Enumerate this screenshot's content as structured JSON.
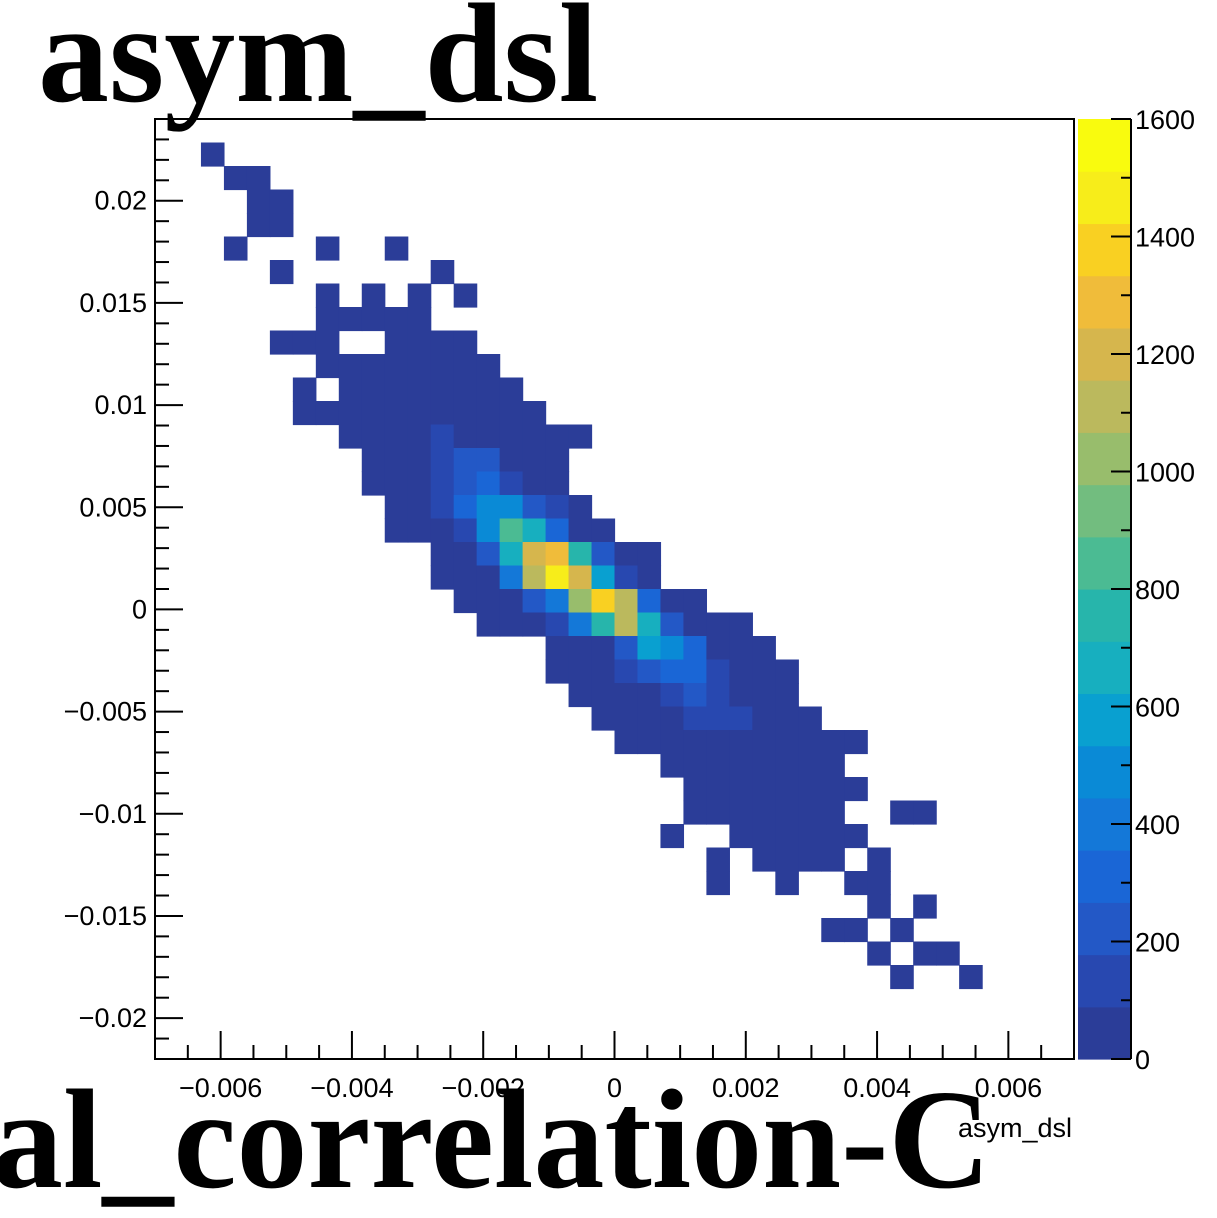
{
  "page": {
    "title": "asym_dsl",
    "bottom_text": "al_correlation-C"
  },
  "chart_data": {
    "type": "heatmap",
    "title": "asym_dsl",
    "xlabel": "asym_dsl",
    "ylabel": "",
    "x_range": [
      -0.007,
      0.007
    ],
    "y_range": [
      -0.022,
      0.024
    ],
    "x_bins": 40,
    "y_bins": 40,
    "x_ticks": [
      {
        "v": -0.006,
        "label": "−0.006"
      },
      {
        "v": -0.004,
        "label": "−0.004"
      },
      {
        "v": -0.002,
        "label": "−0.002"
      },
      {
        "v": 0,
        "label": "0"
      },
      {
        "v": 0.002,
        "label": "0.002"
      },
      {
        "v": 0.004,
        "label": "0.004"
      },
      {
        "v": 0.006,
        "label": "0.006"
      }
    ],
    "y_ticks": [
      {
        "v": 0.02,
        "label": "0.02"
      },
      {
        "v": 0.015,
        "label": "0.015"
      },
      {
        "v": 0.01,
        "label": "0.01"
      },
      {
        "v": 0.005,
        "label": "0.005"
      },
      {
        "v": 0,
        "label": "0"
      },
      {
        "v": -0.005,
        "label": "−0.005"
      },
      {
        "v": -0.01,
        "label": "−0.01"
      },
      {
        "v": -0.015,
        "label": "−0.015"
      },
      {
        "v": -0.02,
        "label": "−0.02"
      }
    ],
    "z_range": [
      0,
      1600
    ],
    "z_ticks": [
      {
        "v": 0,
        "label": "0"
      },
      {
        "v": 200,
        "label": "200"
      },
      {
        "v": 400,
        "label": "400"
      },
      {
        "v": 600,
        "label": "600"
      },
      {
        "v": 800,
        "label": "800"
      },
      {
        "v": 1000,
        "label": "1000"
      },
      {
        "v": 1200,
        "label": "1200"
      },
      {
        "v": 1400,
        "label": "1400"
      },
      {
        "v": 1600,
        "label": "1600"
      }
    ],
    "palette": [
      "#2b3d98",
      "#2848b0",
      "#2358c6",
      "#1a66d6",
      "#1478d8",
      "#0a8ad6",
      "#09a0d0",
      "#17afbf",
      "#27b5ab",
      "#4bbb93",
      "#72bd7f",
      "#98bd6c",
      "#bbb95d",
      "#d6b64d",
      "#f0bc3a",
      "#f9d022",
      "#f7ed1a",
      "#f9fb0e"
    ],
    "cells": [
      [
        2,
        38,
        1
      ],
      [
        3,
        37,
        1
      ],
      [
        4,
        37,
        1
      ],
      [
        4,
        36,
        1
      ],
      [
        5,
        36,
        1
      ],
      [
        4,
        35,
        1
      ],
      [
        5,
        35,
        1
      ],
      [
        3,
        34,
        1
      ],
      [
        7,
        34,
        1
      ],
      [
        10,
        34,
        1
      ],
      [
        5,
        33,
        1
      ],
      [
        12,
        33,
        1
      ],
      [
        7,
        32,
        1
      ],
      [
        9,
        32,
        1
      ],
      [
        11,
        32,
        1
      ],
      [
        13,
        32,
        1
      ],
      [
        7,
        31,
        1
      ],
      [
        8,
        31,
        1
      ],
      [
        9,
        31,
        1
      ],
      [
        10,
        31,
        1
      ],
      [
        11,
        31,
        1
      ],
      [
        5,
        30,
        1
      ],
      [
        6,
        30,
        1
      ],
      [
        7,
        30,
        1
      ],
      [
        10,
        30,
        1
      ],
      [
        11,
        30,
        1
      ],
      [
        12,
        30,
        1
      ],
      [
        13,
        30,
        1
      ],
      [
        7,
        29,
        1
      ],
      [
        8,
        29,
        1
      ],
      [
        9,
        29,
        1
      ],
      [
        10,
        29,
        1
      ],
      [
        11,
        29,
        1
      ],
      [
        12,
        29,
        1
      ],
      [
        13,
        29,
        1
      ],
      [
        14,
        29,
        1
      ],
      [
        6,
        28,
        1
      ],
      [
        8,
        28,
        1
      ],
      [
        9,
        28,
        1
      ],
      [
        10,
        28,
        1
      ],
      [
        11,
        28,
        1
      ],
      [
        12,
        28,
        1
      ],
      [
        13,
        28,
        1
      ],
      [
        14,
        28,
        1
      ],
      [
        15,
        28,
        1
      ],
      [
        6,
        27,
        1
      ],
      [
        7,
        27,
        1
      ],
      [
        8,
        27,
        1
      ],
      [
        9,
        27,
        1
      ],
      [
        10,
        27,
        1
      ],
      [
        11,
        27,
        1
      ],
      [
        12,
        27,
        1
      ],
      [
        13,
        27,
        1
      ],
      [
        14,
        27,
        1
      ],
      [
        15,
        27,
        1
      ],
      [
        16,
        27,
        1
      ],
      [
        8,
        26,
        1
      ],
      [
        9,
        26,
        1
      ],
      [
        10,
        26,
        1
      ],
      [
        11,
        26,
        1
      ],
      [
        12,
        26,
        2
      ],
      [
        13,
        26,
        1
      ],
      [
        14,
        26,
        1
      ],
      [
        15,
        26,
        1
      ],
      [
        16,
        26,
        1
      ],
      [
        17,
        26,
        1
      ],
      [
        18,
        26,
        1
      ],
      [
        9,
        25,
        1
      ],
      [
        10,
        25,
        1
      ],
      [
        11,
        25,
        1
      ],
      [
        12,
        25,
        2
      ],
      [
        13,
        25,
        3
      ],
      [
        14,
        25,
        3
      ],
      [
        15,
        25,
        1
      ],
      [
        16,
        25,
        1
      ],
      [
        17,
        25,
        1
      ],
      [
        9,
        24,
        1
      ],
      [
        10,
        24,
        1
      ],
      [
        11,
        24,
        1
      ],
      [
        12,
        24,
        2
      ],
      [
        13,
        24,
        3
      ],
      [
        14,
        24,
        4
      ],
      [
        15,
        24,
        2
      ],
      [
        16,
        24,
        1
      ],
      [
        17,
        24,
        1
      ],
      [
        10,
        23,
        1
      ],
      [
        11,
        23,
        1
      ],
      [
        12,
        23,
        2
      ],
      [
        13,
        23,
        4
      ],
      [
        14,
        23,
        6
      ],
      [
        15,
        23,
        6
      ],
      [
        16,
        23,
        3
      ],
      [
        17,
        23,
        2
      ],
      [
        18,
        23,
        1
      ],
      [
        10,
        22,
        1
      ],
      [
        11,
        22,
        1
      ],
      [
        12,
        22,
        1
      ],
      [
        13,
        22,
        2
      ],
      [
        14,
        22,
        6
      ],
      [
        15,
        22,
        10
      ],
      [
        16,
        22,
        8
      ],
      [
        17,
        22,
        4
      ],
      [
        18,
        22,
        1
      ],
      [
        19,
        22,
        1
      ],
      [
        12,
        21,
        1
      ],
      [
        13,
        21,
        1
      ],
      [
        14,
        21,
        3
      ],
      [
        15,
        21,
        8
      ],
      [
        16,
        21,
        14
      ],
      [
        17,
        21,
        15
      ],
      [
        18,
        21,
        9
      ],
      [
        19,
        21,
        3
      ],
      [
        20,
        21,
        1
      ],
      [
        21,
        21,
        1
      ],
      [
        12,
        20,
        1
      ],
      [
        13,
        20,
        1
      ],
      [
        14,
        20,
        1
      ],
      [
        15,
        20,
        5
      ],
      [
        16,
        20,
        13
      ],
      [
        17,
        20,
        17
      ],
      [
        18,
        20,
        14
      ],
      [
        19,
        20,
        7
      ],
      [
        20,
        20,
        2
      ],
      [
        21,
        20,
        1
      ],
      [
        13,
        19,
        1
      ],
      [
        14,
        19,
        1
      ],
      [
        15,
        19,
        1
      ],
      [
        16,
        19,
        3
      ],
      [
        17,
        19,
        5
      ],
      [
        18,
        19,
        12
      ],
      [
        19,
        19,
        16
      ],
      [
        20,
        19,
        13
      ],
      [
        21,
        19,
        4
      ],
      [
        22,
        19,
        1
      ],
      [
        23,
        19,
        1
      ],
      [
        14,
        18,
        1
      ],
      [
        15,
        18,
        1
      ],
      [
        16,
        18,
        1
      ],
      [
        17,
        18,
        2
      ],
      [
        18,
        18,
        5
      ],
      [
        19,
        18,
        9
      ],
      [
        20,
        18,
        13
      ],
      [
        21,
        18,
        8
      ],
      [
        22,
        18,
        3
      ],
      [
        23,
        18,
        1
      ],
      [
        24,
        18,
        1
      ],
      [
        25,
        18,
        1
      ],
      [
        17,
        17,
        1
      ],
      [
        18,
        17,
        1
      ],
      [
        19,
        17,
        1
      ],
      [
        20,
        17,
        3
      ],
      [
        21,
        17,
        7
      ],
      [
        22,
        17,
        6
      ],
      [
        23,
        17,
        4
      ],
      [
        24,
        17,
        1
      ],
      [
        25,
        17,
        1
      ],
      [
        26,
        17,
        1
      ],
      [
        17,
        16,
        1
      ],
      [
        18,
        16,
        1
      ],
      [
        19,
        16,
        1
      ],
      [
        20,
        16,
        2
      ],
      [
        21,
        16,
        3
      ],
      [
        22,
        16,
        4
      ],
      [
        23,
        16,
        4
      ],
      [
        24,
        16,
        2
      ],
      [
        25,
        16,
        1
      ],
      [
        26,
        16,
        1
      ],
      [
        27,
        16,
        1
      ],
      [
        18,
        15,
        1
      ],
      [
        19,
        15,
        1
      ],
      [
        20,
        15,
        1
      ],
      [
        21,
        15,
        1
      ],
      [
        22,
        15,
        2
      ],
      [
        23,
        15,
        3
      ],
      [
        24,
        15,
        2
      ],
      [
        25,
        15,
        1
      ],
      [
        26,
        15,
        1
      ],
      [
        27,
        15,
        1
      ],
      [
        19,
        14,
        1
      ],
      [
        20,
        14,
        1
      ],
      [
        21,
        14,
        1
      ],
      [
        22,
        14,
        1
      ],
      [
        23,
        14,
        2
      ],
      [
        24,
        14,
        2
      ],
      [
        25,
        14,
        2
      ],
      [
        26,
        14,
        1
      ],
      [
        27,
        14,
        1
      ],
      [
        28,
        14,
        1
      ],
      [
        20,
        13,
        1
      ],
      [
        21,
        13,
        1
      ],
      [
        22,
        13,
        1
      ],
      [
        23,
        13,
        1
      ],
      [
        24,
        13,
        1
      ],
      [
        25,
        13,
        1
      ],
      [
        26,
        13,
        1
      ],
      [
        27,
        13,
        1
      ],
      [
        28,
        13,
        1
      ],
      [
        29,
        13,
        1
      ],
      [
        30,
        13,
        1
      ],
      [
        22,
        12,
        1
      ],
      [
        23,
        12,
        1
      ],
      [
        24,
        12,
        1
      ],
      [
        25,
        12,
        1
      ],
      [
        26,
        12,
        1
      ],
      [
        27,
        12,
        1
      ],
      [
        28,
        12,
        1
      ],
      [
        29,
        12,
        1
      ],
      [
        23,
        11,
        1
      ],
      [
        24,
        11,
        1
      ],
      [
        25,
        11,
        1
      ],
      [
        26,
        11,
        1
      ],
      [
        27,
        11,
        1
      ],
      [
        28,
        11,
        1
      ],
      [
        29,
        11,
        1
      ],
      [
        30,
        11,
        1
      ],
      [
        23,
        10,
        1
      ],
      [
        24,
        10,
        1
      ],
      [
        25,
        10,
        1
      ],
      [
        26,
        10,
        1
      ],
      [
        27,
        10,
        1
      ],
      [
        28,
        10,
        1
      ],
      [
        29,
        10,
        1
      ],
      [
        32,
        10,
        1
      ],
      [
        33,
        10,
        1
      ],
      [
        22,
        9,
        1
      ],
      [
        25,
        9,
        1
      ],
      [
        26,
        9,
        1
      ],
      [
        27,
        9,
        1
      ],
      [
        28,
        9,
        1
      ],
      [
        29,
        9,
        1
      ],
      [
        30,
        9,
        1
      ],
      [
        24,
        8,
        1
      ],
      [
        26,
        8,
        1
      ],
      [
        27,
        8,
        1
      ],
      [
        28,
        8,
        1
      ],
      [
        29,
        8,
        1
      ],
      [
        31,
        8,
        1
      ],
      [
        24,
        7,
        1
      ],
      [
        27,
        7,
        1
      ],
      [
        30,
        7,
        1
      ],
      [
        31,
        7,
        1
      ],
      [
        31,
        6,
        1
      ],
      [
        33,
        6,
        1
      ],
      [
        29,
        5,
        1
      ],
      [
        30,
        5,
        1
      ],
      [
        32,
        5,
        1
      ],
      [
        31,
        4,
        1
      ],
      [
        33,
        4,
        1
      ],
      [
        34,
        4,
        1
      ],
      [
        32,
        3,
        1
      ],
      [
        35,
        3,
        1
      ]
    ]
  }
}
